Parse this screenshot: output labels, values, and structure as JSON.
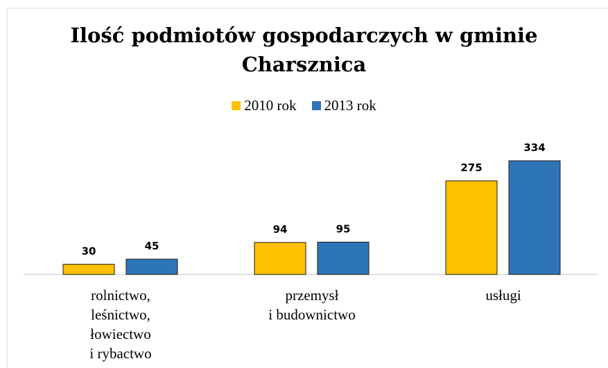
{
  "chart_data": {
    "type": "bar",
    "title": "Ilość podmiotów gospodarczych w gminie\nCharsznica",
    "categories": [
      "rolnictwo,\nleśnictwo,\nłowiectwo\ni rybactwo",
      "przemysł\ni budownictwo",
      "usługi"
    ],
    "series": [
      {
        "name": "2010 rok",
        "color": "#FFC000",
        "values": [
          30,
          94,
          275
        ]
      },
      {
        "name": "2013 rok",
        "color": "#2E75B6",
        "values": [
          45,
          95,
          334
        ]
      }
    ],
    "legend": "top"
  }
}
